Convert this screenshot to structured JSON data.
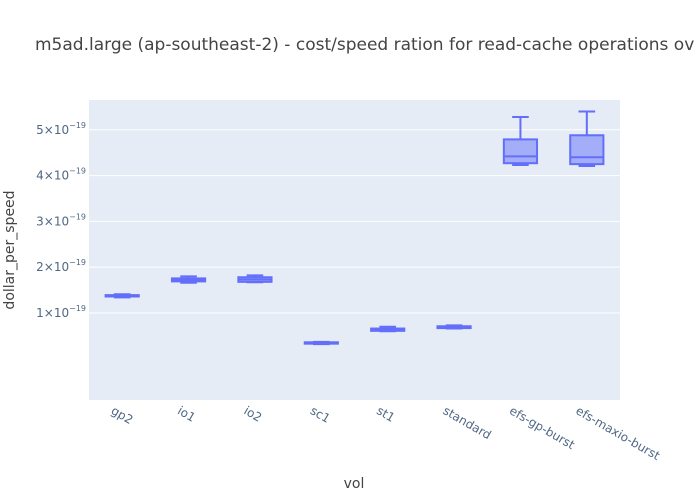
{
  "chart_data": {
    "type": "box",
    "title": "m5ad.large (ap-southeast-2) - cost/speed ration for read-cache operations ov",
    "xlabel": "vol",
    "ylabel": "dollar_per_speed",
    "ylim": [
      -9e-20,
      5.65e-19
    ],
    "y_ticks": [
      1e-19,
      2e-19,
      3e-19,
      4e-19,
      5e-19
    ],
    "y_tick_labels": [
      {
        "mantissa": "1×10",
        "exp": "−19"
      },
      {
        "mantissa": "2×10",
        "exp": "−19"
      },
      {
        "mantissa": "3×10",
        "exp": "−19"
      },
      {
        "mantissa": "4×10",
        "exp": "−19"
      },
      {
        "mantissa": "5×10",
        "exp": "−19"
      }
    ],
    "categories": [
      "gp2",
      "io1",
      "io2",
      "sc1",
      "st1",
      "standard",
      "efs-gp-burst",
      "efs-maxio-burst"
    ],
    "boxes": [
      {
        "category": "gp2",
        "min": 1.34e-19,
        "q1": 1.36e-19,
        "median": 1.375e-19,
        "q3": 1.39e-19,
        "max": 1.41e-19
      },
      {
        "category": "io1",
        "min": 1.66e-19,
        "q1": 1.69e-19,
        "median": 1.72e-19,
        "q3": 1.755e-19,
        "max": 1.8e-19
      },
      {
        "category": "io2",
        "min": 1.67e-19,
        "q1": 1.68e-19,
        "median": 1.73e-19,
        "q3": 1.78e-19,
        "max": 1.82e-19
      },
      {
        "category": "sc1",
        "min": 3.2e-20,
        "q1": 3.3e-20,
        "median": 3.4e-20,
        "q3": 3.6e-20,
        "max": 3.7e-20
      },
      {
        "category": "st1",
        "min": 6e-20,
        "q1": 6.1e-20,
        "median": 6.3e-20,
        "q3": 6.6e-20,
        "max": 7e-20
      },
      {
        "category": "standard",
        "min": 6.6e-20,
        "q1": 6.7e-20,
        "median": 6.9e-20,
        "q3": 7.1e-20,
        "max": 7.3e-20
      },
      {
        "category": "efs-gp-burst",
        "min": 4.23e-19,
        "q1": 4.27e-19,
        "median": 4.42e-19,
        "q3": 4.79e-19,
        "max": 5.28e-19
      },
      {
        "category": "efs-maxio-burst",
        "min": 4.21e-19,
        "q1": 4.25e-19,
        "median": 4.4e-19,
        "q3": 4.88e-19,
        "max": 5.4e-19
      }
    ],
    "colors": {
      "plot_bg": "#e5ecf6",
      "grid": "#ffffff",
      "box_line": "#636efa",
      "box_fill": "rgba(99,110,250,0.5)",
      "tick_text": "#506784",
      "title_text": "#444444"
    },
    "grid": true,
    "legend": "none"
  }
}
